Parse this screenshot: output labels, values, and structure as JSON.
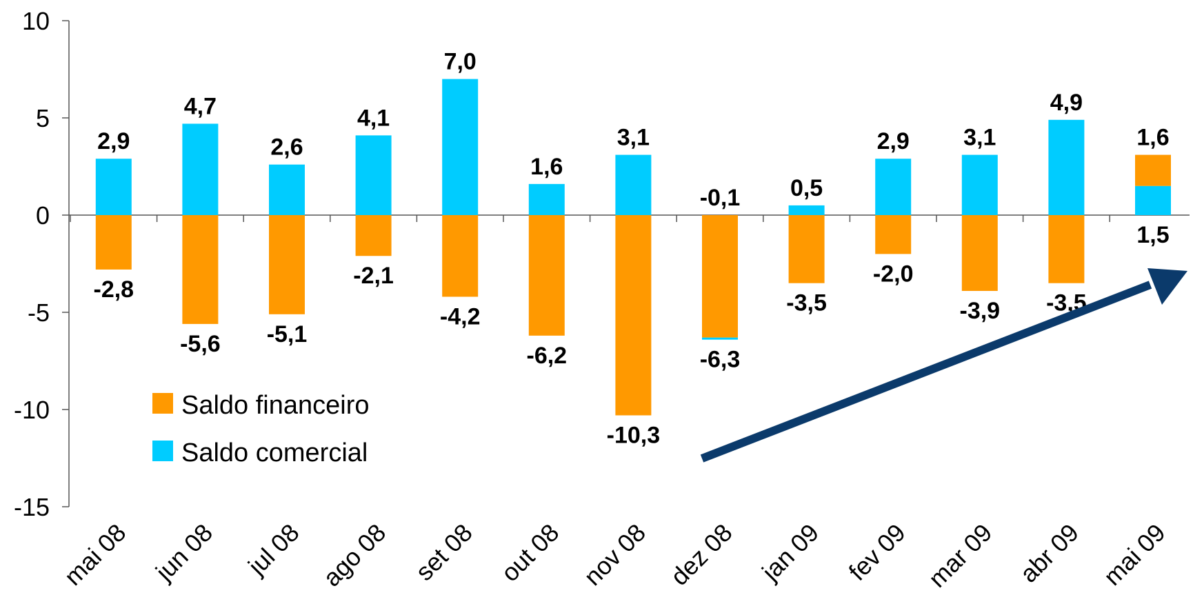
{
  "chart_data": {
    "type": "bar",
    "stacked": true,
    "title": "",
    "xlabel": "",
    "ylabel": "",
    "ylim": [
      -15,
      10
    ],
    "yticks": [
      10,
      5,
      0,
      -5,
      -10,
      -15
    ],
    "ytick_labels": [
      "10",
      "5",
      "0",
      "-5",
      "-10",
      "-15"
    ],
    "grid": false,
    "legend_position": "bottom-left",
    "categories": [
      "mai 08",
      "jun 08",
      "jul 08",
      "ago 08",
      "set 08",
      "out 08",
      "nov 08",
      "dez 08",
      "jan 09",
      "fev 09",
      "mar 09",
      "abr 09",
      "mai 09"
    ],
    "series": [
      {
        "name": "Saldo financeiro",
        "color": "#FF9900",
        "values": [
          -2.8,
          -5.6,
          -5.1,
          -2.1,
          -4.2,
          -6.2,
          -10.3,
          -6.3,
          -3.5,
          -2.0,
          -3.9,
          -3.5,
          1.6
        ],
        "labels": [
          "-2,8",
          "-5,6",
          "-5,1",
          "-2,1",
          "-4,2",
          "-6,2",
          "-10,3",
          "-6,3",
          "-3,5",
          "-2,0",
          "-3,9",
          "-3,5",
          "1,6"
        ]
      },
      {
        "name": "Saldo comercial",
        "color": "#00CCFF",
        "values": [
          2.9,
          4.7,
          2.6,
          4.1,
          7.0,
          1.6,
          3.1,
          -0.1,
          0.5,
          2.9,
          3.1,
          4.9,
          1.5
        ],
        "labels": [
          "2,9",
          "4,7",
          "2,6",
          "4,1",
          "7,0",
          "1,6",
          "3,1",
          "-0,1",
          "0,5",
          "2,9",
          "3,1",
          "4,9",
          "1,5"
        ]
      }
    ],
    "annotations": [
      {
        "type": "arrow",
        "color": "#0B3A6B",
        "description": "upward trend arrow"
      }
    ]
  }
}
